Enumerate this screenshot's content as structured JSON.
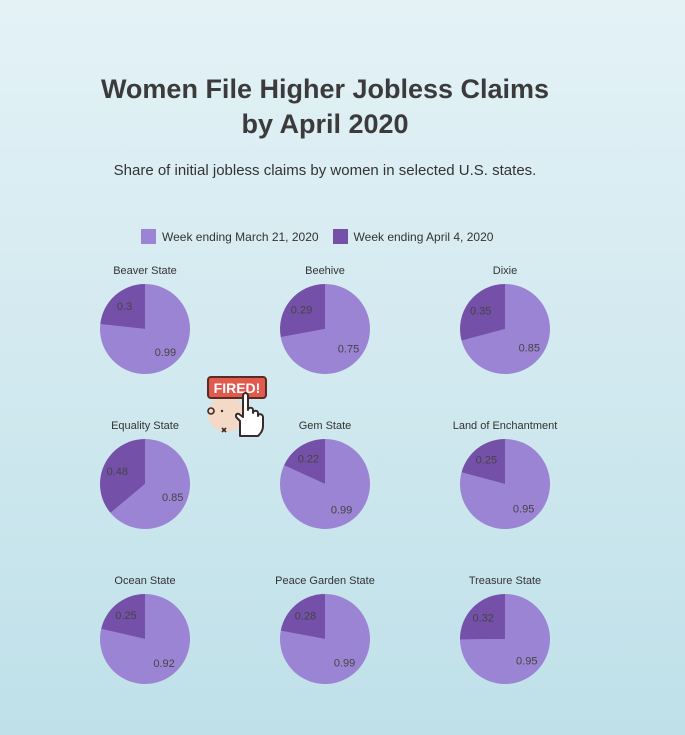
{
  "title_lines": [
    "Women File Higher Jobless Claims",
    "by April 2020"
  ],
  "subtitle": "Share of initial jobless claims by women in selected U.S. states.",
  "sticker_text": "FIRED!",
  "colors": {
    "march": "#9b84d3",
    "april": "#7550a8",
    "label": "#444444"
  },
  "chart_data": {
    "type": "pie",
    "legend": {
      "placement": "top",
      "entries": [
        "Week ending March 21, 2020",
        "Week ending April 4, 2020"
      ]
    },
    "series_names": [
      "Week ending March 21, 2020",
      "Week ending April 4, 2020"
    ],
    "pies": [
      {
        "state": "Beaver State",
        "values": [
          0.99,
          0.3
        ]
      },
      {
        "state": "Beehive",
        "values": [
          0.75,
          0.29
        ]
      },
      {
        "state": "Dixie",
        "values": [
          0.85,
          0.35
        ]
      },
      {
        "state": "Equality State",
        "values": [
          0.85,
          0.48
        ]
      },
      {
        "state": "Gem State",
        "values": [
          0.99,
          0.22
        ]
      },
      {
        "state": "Land of Enchantment",
        "values": [
          0.95,
          0.25
        ]
      },
      {
        "state": "Ocean State",
        "values": [
          0.92,
          0.25
        ]
      },
      {
        "state": "Peace Garden State",
        "values": [
          0.99,
          0.28
        ]
      },
      {
        "state": "Treasure State",
        "values": [
          0.95,
          0.32
        ]
      }
    ]
  }
}
